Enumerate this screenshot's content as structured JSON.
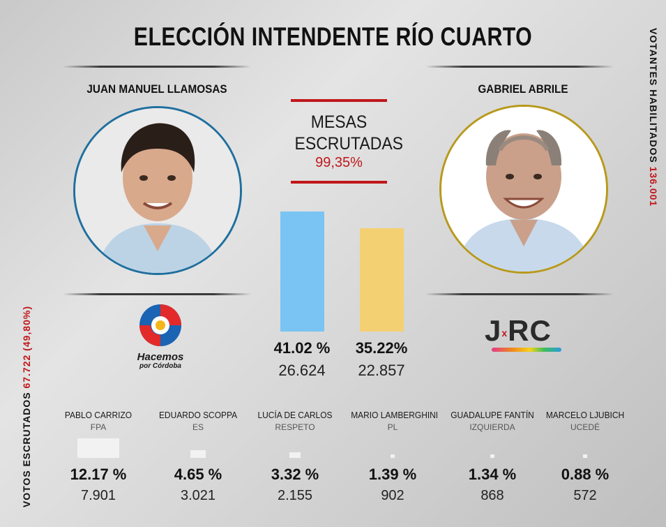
{
  "title": "ELECCIÓN INTENDENTE RÍO CUARTO",
  "side_right": {
    "label": "VOTANTES HABILITADOS",
    "value": "136.001"
  },
  "side_left": {
    "label": "VOTOS ESCRUTADOS",
    "value": "67.722 (49,80%)"
  },
  "mesas": {
    "label_1": "MESAS",
    "label_2": "ESCRUTADAS",
    "value": "99,35%"
  },
  "colors": {
    "accent_red": "#c0171b",
    "llamosas": "#79c4f2",
    "abrile": "#f3d072",
    "minor": "#f2f2f2"
  },
  "candidates": [
    {
      "name": "JUAN MANUEL LLAMOSAS",
      "party_logo": "hacemos-por-cordoba-logo",
      "logo_text_1": "Hacemos",
      "logo_text_2": "por Córdoba",
      "pct": "41.02 %",
      "votes": "26.624"
    },
    {
      "name": "GABRIEL ABRILE",
      "party_logo": "jxrc-logo",
      "logo_text_1": "J",
      "logo_text_2": "RC",
      "logo_x": "x",
      "pct": "35.22%",
      "votes": "22.857"
    }
  ],
  "chart_data": {
    "type": "bar",
    "categories": [
      "JUAN MANUEL LLAMOSAS",
      "GABRIEL ABRILE",
      "PABLO CARRIZO",
      "EDUARDO SCOPPA",
      "LUCÍA DE CARLOS",
      "MARIO LAMBERGHINI",
      "GUADALUPE FANTÍN",
      "MARCELO LJUBICH"
    ],
    "parties": [
      "Hacemos por Córdoba",
      "JxRC",
      "FPA",
      "ES",
      "RESPETO",
      "PL",
      "IZQUIERDA",
      "UCEDÉ"
    ],
    "values": [
      41.02,
      35.22,
      12.17,
      4.65,
      3.32,
      1.39,
      1.34,
      0.88
    ],
    "votes": [
      26624,
      22857,
      7901,
      3021,
      2155,
      902,
      868,
      572
    ],
    "ylim": [
      0,
      45
    ],
    "grid": false
  },
  "minor": [
    {
      "name": "PABLO CARRIZO",
      "party": "FPA",
      "pct": "12.17 %",
      "votes": "7.901"
    },
    {
      "name": "EDUARDO SCOPPA",
      "party": "ES",
      "pct": "4.65 %",
      "votes": "3.021"
    },
    {
      "name": "LUCÍA DE CARLOS",
      "party": "RESPETO",
      "pct": "3.32 %",
      "votes": "2.155"
    },
    {
      "name": "MARIO LAMBERGHINI",
      "party": "PL",
      "pct": "1.39 %",
      "votes": "902"
    },
    {
      "name": "GUADALUPE FANTÍN",
      "party": "IZQUIERDA",
      "pct": "1.34 %",
      "votes": "868"
    },
    {
      "name": "MARCELO LJUBICH",
      "party": "UCEDÉ",
      "pct": "0.88 %",
      "votes": "572"
    }
  ]
}
